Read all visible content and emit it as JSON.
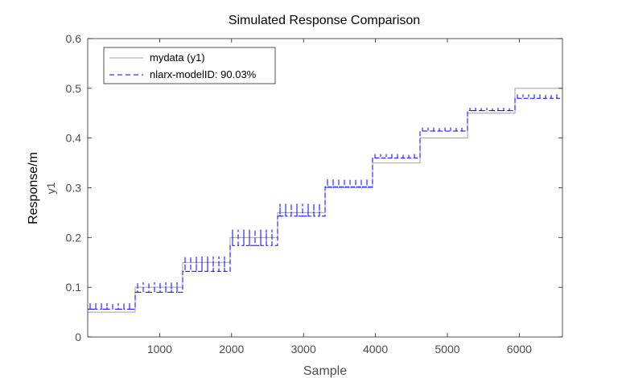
{
  "chart_data": {
    "type": "line",
    "title": "Simulated Response Comparison",
    "xlabel": "Sample",
    "ylabel": "Response/m",
    "ylabel_sub": "y1",
    "xlim": [
      0,
      6600
    ],
    "ylim": [
      0,
      0.6
    ],
    "xticks": [
      "1000",
      "2000",
      "3000",
      "4000",
      "5000",
      "6000"
    ],
    "xtick_values": [
      1000,
      2000,
      3000,
      4000,
      5000,
      6000
    ],
    "yticks": [
      "0",
      "0.1",
      "0.2",
      "0.3",
      "0.4",
      "0.5",
      "0.6"
    ],
    "ytick_values": [
      0,
      0.1,
      0.2,
      0.3,
      0.4,
      0.5,
      0.6
    ],
    "grid": false,
    "legend_position": "top-left",
    "series": [
      {
        "name": "mydata (y1)",
        "color": "#a0a0a0",
        "style": "solid",
        "x": [
          0,
          660,
          660,
          1320,
          1320,
          1980,
          1980,
          2640,
          2640,
          3300,
          3300,
          3960,
          3960,
          4620,
          4620,
          5280,
          5280,
          5940,
          5940,
          6600
        ],
        "y": [
          0.05,
          0.05,
          0.1,
          0.1,
          0.15,
          0.15,
          0.2,
          0.2,
          0.25,
          0.25,
          0.3,
          0.3,
          0.35,
          0.35,
          0.4,
          0.4,
          0.45,
          0.45,
          0.5,
          0.5
        ]
      },
      {
        "name": "nlarx-modelID:  90.03%",
        "color": "#0000ff",
        "style": "dashed",
        "segments": [
          {
            "x_start": 0,
            "x_end": 660,
            "low": 0.056,
            "high": 0.068
          },
          {
            "x_start": 660,
            "x_end": 1320,
            "low": 0.09,
            "high": 0.11
          },
          {
            "x_start": 1320,
            "x_end": 1980,
            "low": 0.132,
            "high": 0.162
          },
          {
            "x_start": 1980,
            "x_end": 2640,
            "low": 0.184,
            "high": 0.216
          },
          {
            "x_start": 2640,
            "x_end": 3300,
            "low": 0.243,
            "high": 0.268
          },
          {
            "x_start": 3300,
            "x_end": 3960,
            "low": 0.302,
            "high": 0.318
          },
          {
            "x_start": 3960,
            "x_end": 4620,
            "low": 0.36,
            "high": 0.368
          },
          {
            "x_start": 4620,
            "x_end": 5280,
            "low": 0.414,
            "high": 0.421
          },
          {
            "x_start": 5280,
            "x_end": 5940,
            "low": 0.455,
            "high": 0.461
          },
          {
            "x_start": 5940,
            "x_end": 6600,
            "low": 0.48,
            "high": 0.488
          }
        ]
      }
    ]
  }
}
